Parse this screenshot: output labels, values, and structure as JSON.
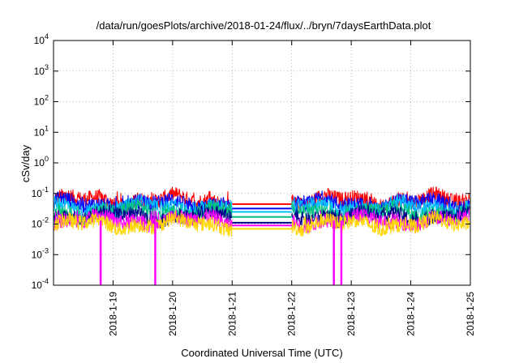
{
  "chart_data": {
    "type": "line",
    "title": "/data/run/goesPlots/archive/2018-01-24/flux/../bryn/7daysEarthData.plot",
    "xlabel": "Coordinated Universal Time (UTC)",
    "ylabel": "cSv/day",
    "yscale": "log",
    "ylim": [
      0.0001,
      10000
    ],
    "xlim": [
      "2018-01-18",
      "2018-01-25"
    ],
    "x_ticks": [
      "2018-1-19",
      "2018-1-20",
      "2018-1-21",
      "2018-1-22",
      "2018-1-23",
      "2018-1-24",
      "2018-1-25"
    ],
    "y_ticks": [
      {
        "value": 0.0001,
        "base": "10",
        "exp": "-4"
      },
      {
        "value": 0.001,
        "base": "10",
        "exp": "-3"
      },
      {
        "value": 0.01,
        "base": "10",
        "exp": "-2"
      },
      {
        "value": 0.1,
        "base": "10",
        "exp": "-1"
      },
      {
        "value": 1,
        "base": "10",
        "exp": "0"
      },
      {
        "value": 10,
        "base": "10",
        "exp": "1"
      },
      {
        "value": 100,
        "base": "10",
        "exp": "2"
      },
      {
        "value": 1000,
        "base": "10",
        "exp": "3"
      },
      {
        "value": 10000,
        "base": "10",
        "exp": "4"
      }
    ],
    "grid": true,
    "data_gap": [
      "2018-01-21",
      "2018-01-22"
    ],
    "dropouts": [
      "2018-01-18 19:00",
      "2018-01-19 17:00",
      "2018-01-22 17:00",
      "2018-01-22 20:00"
    ],
    "series": [
      {
        "color": "#ff0000",
        "typical": 0.06,
        "peak": 0.12,
        "gap_value": 0.045
      },
      {
        "color": "#0000ff",
        "typical": 0.045,
        "peak": 0.09,
        "gap_value": 0.032
      },
      {
        "color": "#00bfff",
        "typical": 0.035,
        "peak": 0.06,
        "gap_value": 0.025
      },
      {
        "color": "#00c080",
        "typical": 0.025,
        "peak": 0.045,
        "gap_value": 0.017
      },
      {
        "color": "#00008b",
        "typical": 0.018,
        "peak": 0.03,
        "gap_value": 0.011
      },
      {
        "color": "#ff00ff",
        "typical": 0.013,
        "peak": 0.03,
        "gap_value": 0.009
      },
      {
        "color": "#ffd700",
        "typical": 0.01,
        "peak": 0.018,
        "gap_value": 0.007
      }
    ]
  }
}
